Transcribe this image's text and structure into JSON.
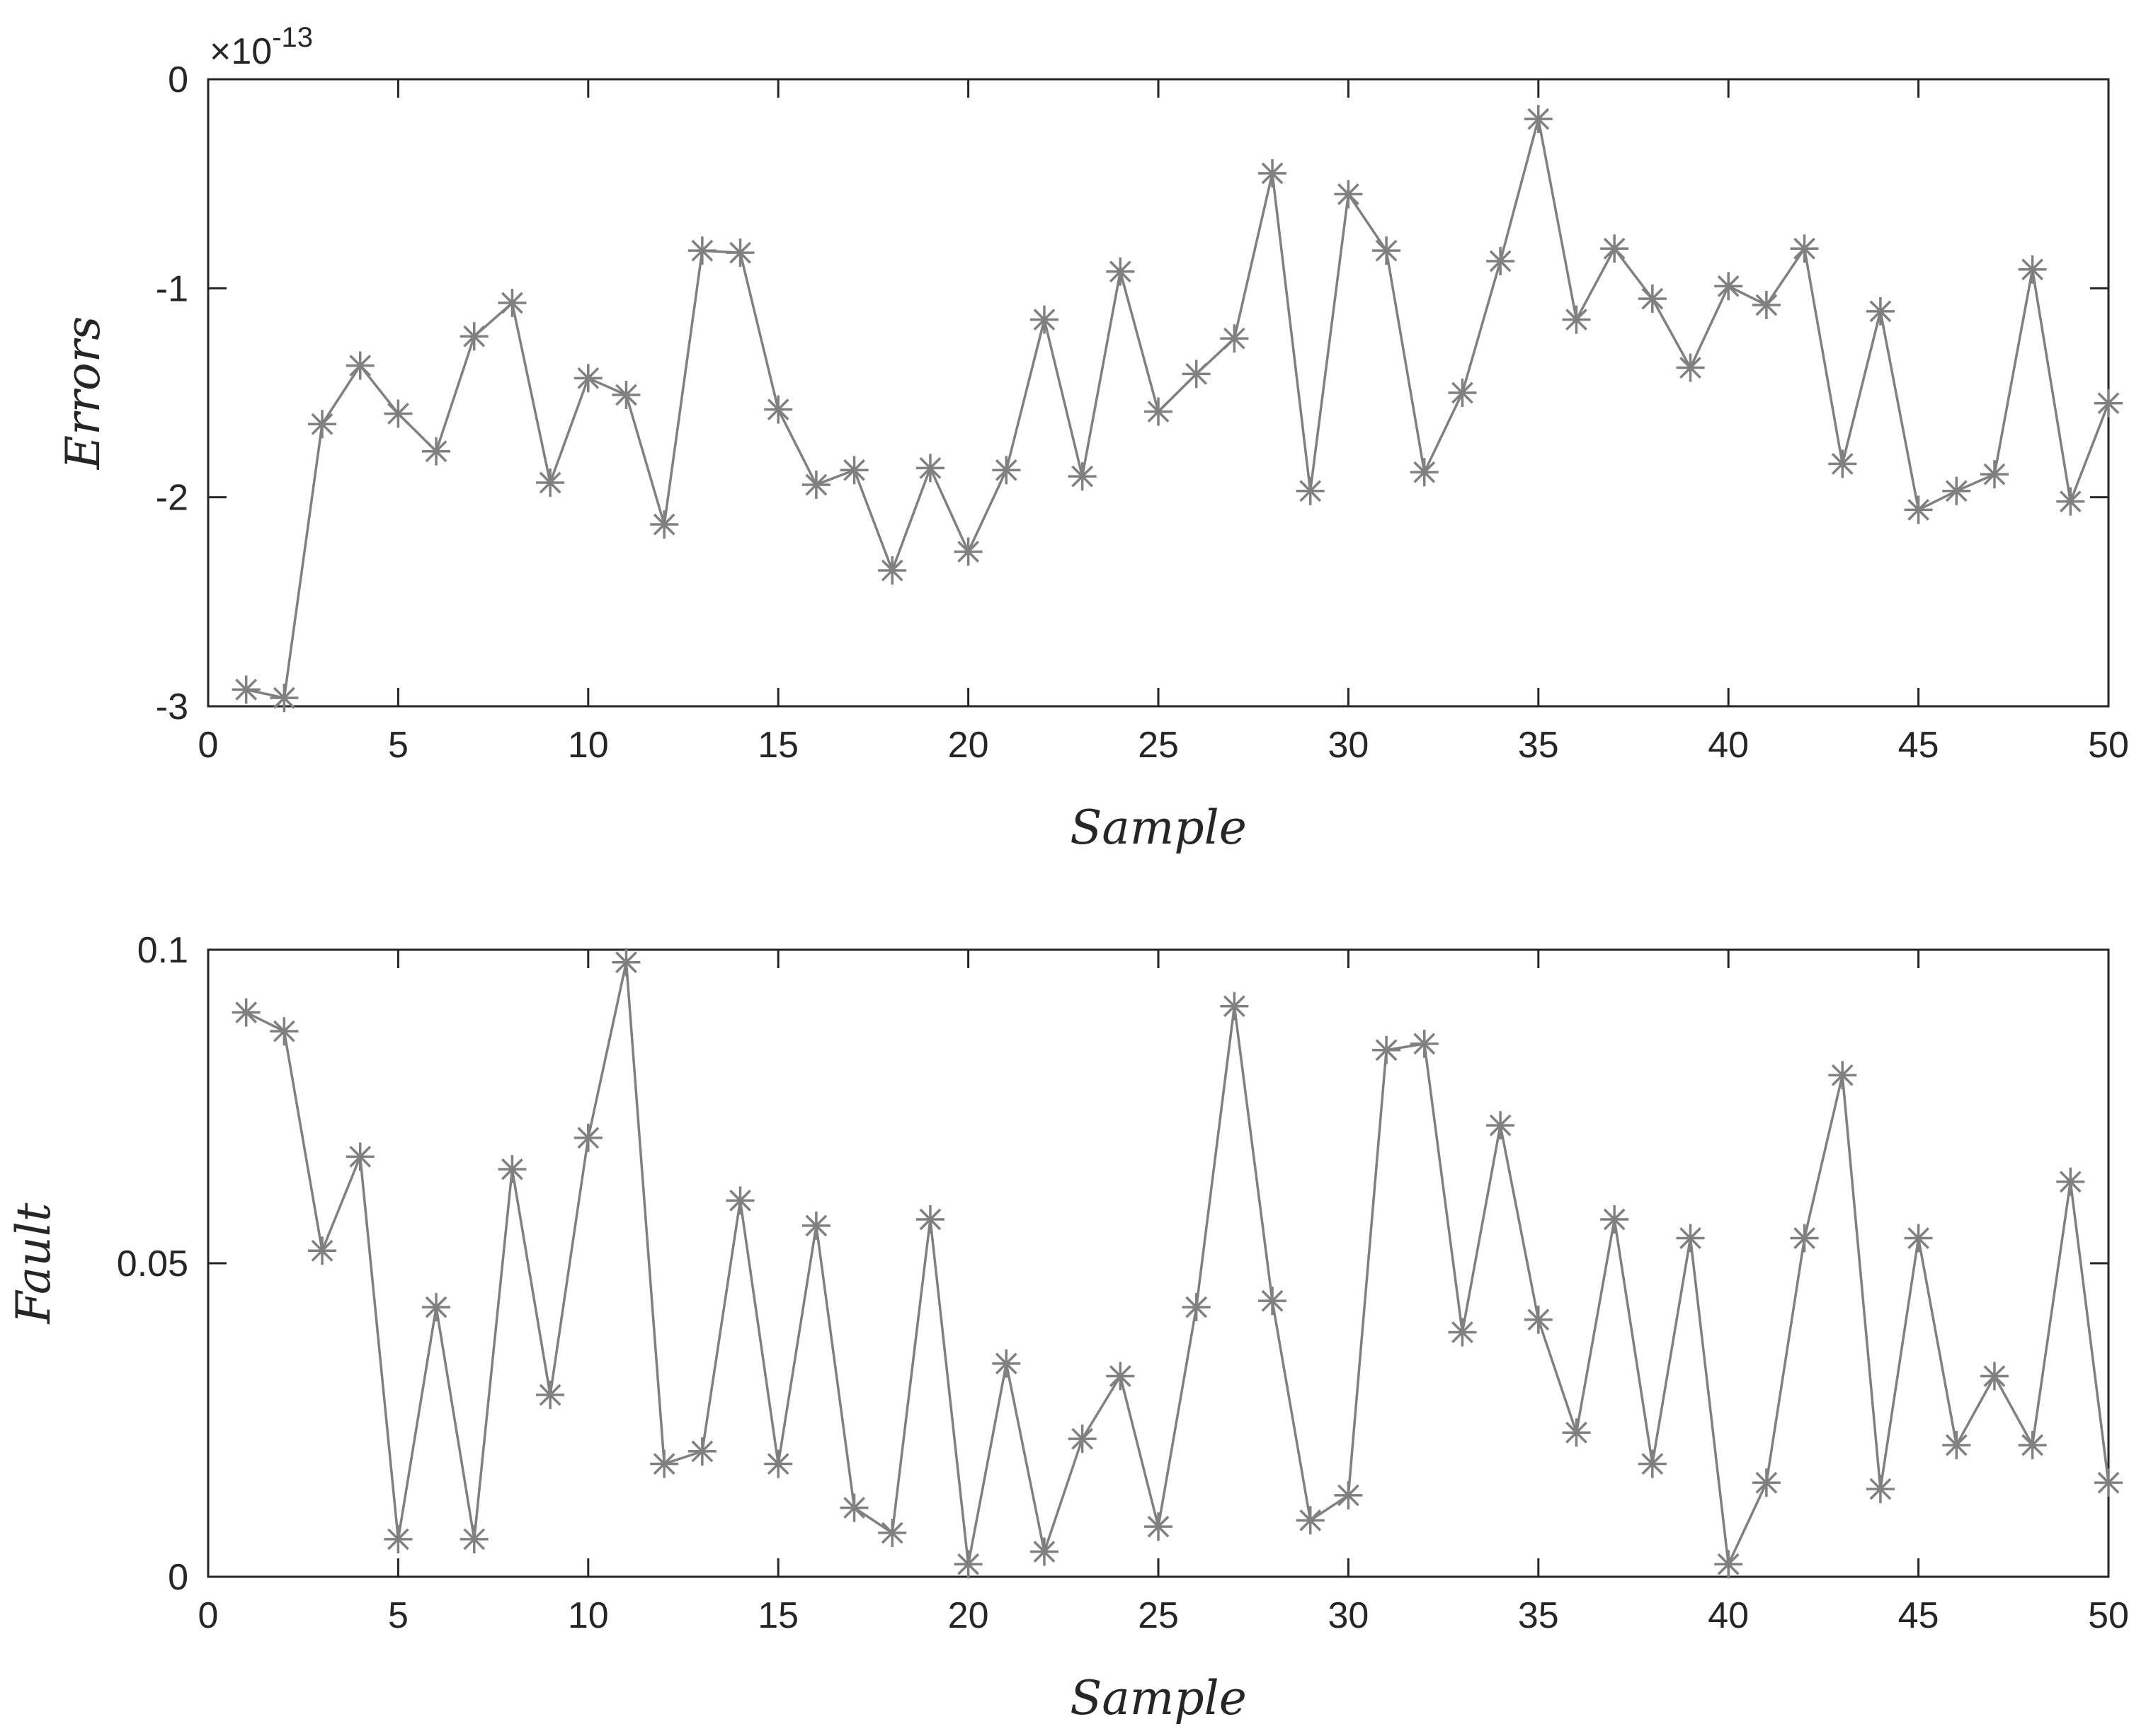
{
  "chart_data": [
    {
      "type": "line",
      "marker": "asterisk",
      "color": "#808080",
      "xlabel": "Sample",
      "ylabel": "Errors",
      "xlim": [
        0,
        50
      ],
      "ylim": [
        -3,
        0
      ],
      "y_multiplier_label": "×10",
      "y_multiplier_exponent": "-13",
      "xticks": [
        "0",
        "5",
        "10",
        "15",
        "20",
        "25",
        "30",
        "35",
        "40",
        "45",
        "50"
      ],
      "yticks": [
        "0",
        "-1",
        "-2",
        "-3"
      ],
      "x": [
        1,
        2,
        3,
        4,
        5,
        6,
        7,
        8,
        9,
        10,
        11,
        12,
        13,
        14,
        15,
        16,
        17,
        18,
        19,
        20,
        21,
        22,
        23,
        24,
        25,
        26,
        27,
        28,
        29,
        30,
        31,
        32,
        33,
        34,
        35,
        36,
        37,
        38,
        39,
        40,
        41,
        42,
        43,
        44,
        45,
        46,
        47,
        48,
        49,
        50
      ],
      "y": [
        -2.92,
        -2.96,
        -1.65,
        -1.37,
        -1.6,
        -1.78,
        -1.23,
        -1.07,
        -1.93,
        -1.43,
        -1.51,
        -2.13,
        -0.82,
        -0.83,
        -1.58,
        -1.94,
        -1.87,
        -2.35,
        -1.86,
        -2.26,
        -1.87,
        -1.15,
        -1.9,
        -0.92,
        -1.59,
        -1.41,
        -1.24,
        -0.45,
        -1.97,
        -0.55,
        -0.82,
        -1.88,
        -1.5,
        -0.87,
        -0.19,
        -1.15,
        -0.81,
        -1.05,
        -1.38,
        -0.99,
        -1.08,
        -0.81,
        -1.84,
        -1.11,
        -2.06,
        -1.97,
        -1.89,
        -0.91,
        -2.02,
        -1.55
      ]
    },
    {
      "type": "line",
      "marker": "asterisk",
      "color": "#808080",
      "xlabel": "Sample",
      "ylabel": "Fault",
      "xlim": [
        0,
        50
      ],
      "ylim": [
        0,
        0.1
      ],
      "xticks": [
        "0",
        "5",
        "10",
        "15",
        "20",
        "25",
        "30",
        "35",
        "40",
        "45",
        "50"
      ],
      "yticks": [
        "0.1",
        "0.05",
        "0"
      ],
      "x": [
        1,
        2,
        3,
        4,
        5,
        6,
        7,
        8,
        9,
        10,
        11,
        12,
        13,
        14,
        15,
        16,
        17,
        18,
        19,
        20,
        21,
        22,
        23,
        24,
        25,
        26,
        27,
        28,
        29,
        30,
        31,
        32,
        33,
        34,
        35,
        36,
        37,
        38,
        39,
        40,
        41,
        42,
        43,
        44,
        45,
        46,
        47,
        48,
        49,
        50
      ],
      "y": [
        0.09,
        0.087,
        0.052,
        0.067,
        0.006,
        0.043,
        0.006,
        0.065,
        0.029,
        0.07,
        0.098,
        0.018,
        0.02,
        0.06,
        0.018,
        0.056,
        0.011,
        0.007,
        0.057,
        0.002,
        0.034,
        0.004,
        0.022,
        0.032,
        0.008,
        0.043,
        0.091,
        0.044,
        0.009,
        0.013,
        0.084,
        0.085,
        0.039,
        0.072,
        0.041,
        0.023,
        0.057,
        0.018,
        0.054,
        0.002,
        0.015,
        0.054,
        0.08,
        0.014,
        0.054,
        0.021,
        0.032,
        0.021,
        0.063,
        0.015
      ]
    }
  ]
}
